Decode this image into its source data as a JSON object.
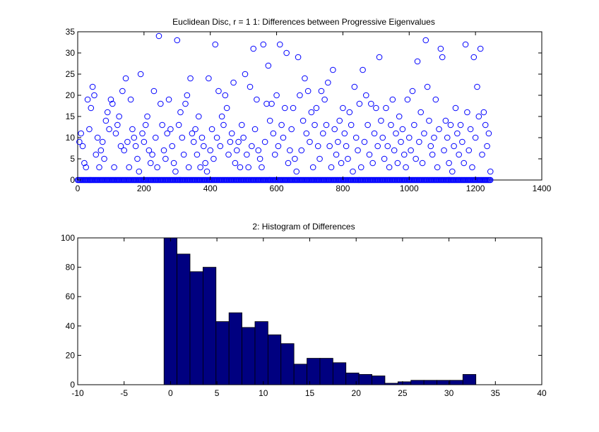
{
  "chart_data": [
    {
      "type": "scatter",
      "title": "Euclidean Disc, r = 1 1: Differences between Progressive Eigenvalues",
      "xlabel": "",
      "ylabel": "",
      "xlim": [
        0,
        1400
      ],
      "ylim": [
        0,
        35
      ],
      "xticks": [
        0,
        200,
        400,
        600,
        800,
        1000,
        1200,
        1400
      ],
      "yticks": [
        0,
        5,
        10,
        15,
        20,
        25,
        30,
        35
      ],
      "grid": false,
      "legend": "none",
      "color": "#0000ff",
      "marker": "circle-open",
      "baseline_range": [
        0,
        1245
      ],
      "points": [
        [
          5,
          9
        ],
        [
          10,
          11
        ],
        [
          15,
          8
        ],
        [
          20,
          4
        ],
        [
          25,
          3
        ],
        [
          30,
          19
        ],
        [
          35,
          12
        ],
        [
          40,
          17
        ],
        [
          45,
          22
        ],
        [
          50,
          20
        ],
        [
          55,
          6
        ],
        [
          60,
          10
        ],
        [
          65,
          3
        ],
        [
          70,
          7
        ],
        [
          75,
          9
        ],
        [
          80,
          5
        ],
        [
          85,
          14
        ],
        [
          90,
          16
        ],
        [
          95,
          12
        ],
        [
          100,
          19
        ],
        [
          105,
          18
        ],
        [
          110,
          3
        ],
        [
          115,
          11
        ],
        [
          120,
          13
        ],
        [
          125,
          15
        ],
        [
          130,
          8
        ],
        [
          135,
          21
        ],
        [
          140,
          7
        ],
        [
          145,
          24
        ],
        [
          150,
          9
        ],
        [
          155,
          3
        ],
        [
          160,
          19
        ],
        [
          165,
          12
        ],
        [
          170,
          10
        ],
        [
          175,
          8
        ],
        [
          180,
          5
        ],
        [
          185,
          2
        ],
        [
          190,
          25
        ],
        [
          195,
          11
        ],
        [
          200,
          9
        ],
        [
          205,
          13
        ],
        [
          210,
          15
        ],
        [
          215,
          7
        ],
        [
          220,
          4
        ],
        [
          225,
          6
        ],
        [
          230,
          21
        ],
        [
          235,
          10
        ],
        [
          240,
          3
        ],
        [
          245,
          34
        ],
        [
          250,
          18
        ],
        [
          255,
          13
        ],
        [
          260,
          7
        ],
        [
          265,
          5
        ],
        [
          270,
          11
        ],
        [
          275,
          19
        ],
        [
          280,
          12
        ],
        [
          285,
          8
        ],
        [
          290,
          4
        ],
        [
          295,
          2
        ],
        [
          300,
          33
        ],
        [
          305,
          13
        ],
        [
          310,
          16
        ],
        [
          315,
          10
        ],
        [
          320,
          6
        ],
        [
          325,
          18
        ],
        [
          330,
          20
        ],
        [
          335,
          3
        ],
        [
          340,
          24
        ],
        [
          345,
          11
        ],
        [
          350,
          9
        ],
        [
          355,
          12
        ],
        [
          360,
          6
        ],
        [
          365,
          15
        ],
        [
          370,
          3
        ],
        [
          375,
          10
        ],
        [
          380,
          8
        ],
        [
          385,
          4
        ],
        [
          390,
          2
        ],
        [
          395,
          24
        ],
        [
          400,
          7
        ],
        [
          405,
          12
        ],
        [
          410,
          5
        ],
        [
          415,
          32
        ],
        [
          420,
          10
        ],
        [
          425,
          21
        ],
        [
          430,
          8
        ],
        [
          435,
          15
        ],
        [
          440,
          13
        ],
        [
          445,
          20
        ],
        [
          450,
          17
        ],
        [
          455,
          6
        ],
        [
          460,
          9
        ],
        [
          465,
          11
        ],
        [
          470,
          23
        ],
        [
          475,
          4
        ],
        [
          480,
          7
        ],
        [
          485,
          9
        ],
        [
          490,
          3
        ],
        [
          495,
          13
        ],
        [
          500,
          10
        ],
        [
          505,
          25
        ],
        [
          510,
          6
        ],
        [
          515,
          3
        ],
        [
          520,
          22
        ],
        [
          525,
          8
        ],
        [
          530,
          31
        ],
        [
          535,
          12
        ],
        [
          540,
          19
        ],
        [
          545,
          7
        ],
        [
          550,
          5
        ],
        [
          555,
          3
        ],
        [
          560,
          32
        ],
        [
          565,
          9
        ],
        [
          570,
          18
        ],
        [
          575,
          27
        ],
        [
          580,
          14
        ],
        [
          585,
          18
        ],
        [
          590,
          11
        ],
        [
          595,
          6
        ],
        [
          600,
          20
        ],
        [
          605,
          8
        ],
        [
          610,
          32
        ],
        [
          615,
          13
        ],
        [
          620,
          10
        ],
        [
          625,
          17
        ],
        [
          630,
          30
        ],
        [
          635,
          4
        ],
        [
          640,
          7
        ],
        [
          645,
          12
        ],
        [
          650,
          17
        ],
        [
          655,
          5
        ],
        [
          660,
          2
        ],
        [
          665,
          29
        ],
        [
          670,
          20
        ],
        [
          675,
          7
        ],
        [
          680,
          14
        ],
        [
          685,
          24
        ],
        [
          690,
          11
        ],
        [
          695,
          21
        ],
        [
          700,
          9
        ],
        [
          705,
          16
        ],
        [
          710,
          3
        ],
        [
          715,
          13
        ],
        [
          720,
          17
        ],
        [
          725,
          8
        ],
        [
          730,
          5
        ],
        [
          735,
          21
        ],
        [
          740,
          11
        ],
        [
          745,
          19
        ],
        [
          750,
          13
        ],
        [
          755,
          23
        ],
        [
          760,
          8
        ],
        [
          765,
          3
        ],
        [
          770,
          26
        ],
        [
          775,
          12
        ],
        [
          780,
          6
        ],
        [
          785,
          9
        ],
        [
          790,
          14
        ],
        [
          795,
          4
        ],
        [
          800,
          17
        ],
        [
          805,
          11
        ],
        [
          810,
          8
        ],
        [
          815,
          5
        ],
        [
          820,
          16
        ],
        [
          825,
          13
        ],
        [
          830,
          2
        ],
        [
          835,
          22
        ],
        [
          840,
          10
        ],
        [
          845,
          7
        ],
        [
          850,
          18
        ],
        [
          855,
          3
        ],
        [
          860,
          26
        ],
        [
          865,
          9
        ],
        [
          870,
          20
        ],
        [
          875,
          13
        ],
        [
          880,
          6
        ],
        [
          885,
          18
        ],
        [
          890,
          4
        ],
        [
          895,
          11
        ],
        [
          900,
          17
        ],
        [
          905,
          8
        ],
        [
          910,
          29
        ],
        [
          915,
          14
        ],
        [
          920,
          10
        ],
        [
          925,
          5
        ],
        [
          930,
          17
        ],
        [
          935,
          8
        ],
        [
          940,
          3
        ],
        [
          945,
          13
        ],
        [
          950,
          19
        ],
        [
          955,
          7
        ],
        [
          960,
          11
        ],
        [
          965,
          4
        ],
        [
          970,
          15
        ],
        [
          975,
          9
        ],
        [
          980,
          12
        ],
        [
          985,
          6
        ],
        [
          990,
          3
        ],
        [
          995,
          19
        ],
        [
          1000,
          10
        ],
        [
          1005,
          7
        ],
        [
          1010,
          21
        ],
        [
          1015,
          13
        ],
        [
          1020,
          5
        ],
        [
          1025,
          28
        ],
        [
          1030,
          9
        ],
        [
          1035,
          16
        ],
        [
          1040,
          4
        ],
        [
          1045,
          11
        ],
        [
          1050,
          33
        ],
        [
          1055,
          22
        ],
        [
          1060,
          14
        ],
        [
          1065,
          8
        ],
        [
          1070,
          6
        ],
        [
          1075,
          10
        ],
        [
          1080,
          19
        ],
        [
          1085,
          3
        ],
        [
          1090,
          12
        ],
        [
          1095,
          31
        ],
        [
          1100,
          29
        ],
        [
          1105,
          7
        ],
        [
          1110,
          14
        ],
        [
          1115,
          10
        ],
        [
          1120,
          4
        ],
        [
          1125,
          13
        ],
        [
          1130,
          2
        ],
        [
          1135,
          8
        ],
        [
          1140,
          17
        ],
        [
          1145,
          11
        ],
        [
          1150,
          6
        ],
        [
          1155,
          13
        ],
        [
          1160,
          9
        ],
        [
          1165,
          4
        ],
        [
          1170,
          32
        ],
        [
          1175,
          16
        ],
        [
          1180,
          7
        ],
        [
          1185,
          12
        ],
        [
          1190,
          3
        ],
        [
          1195,
          29
        ],
        [
          1200,
          10
        ],
        [
          1205,
          22
        ],
        [
          1210,
          15
        ],
        [
          1215,
          31
        ],
        [
          1220,
          6
        ],
        [
          1225,
          16
        ],
        [
          1230,
          13
        ],
        [
          1235,
          8
        ],
        [
          1240,
          11
        ],
        [
          1245,
          2
        ]
      ]
    },
    {
      "type": "bar",
      "title": "2: Histogram of Differences",
      "xlabel": "",
      "ylabel": "",
      "xlim": [
        -10,
        40
      ],
      "ylim": [
        0,
        100
      ],
      "xticks": [
        -10,
        -5,
        0,
        5,
        10,
        15,
        20,
        25,
        30,
        35,
        40
      ],
      "yticks": [
        0,
        20,
        40,
        60,
        80,
        100
      ],
      "grid": false,
      "legend": "none",
      "color": "#000080",
      "bin_width": 1.4,
      "bin_centers": [
        0.0,
        1.4,
        2.8,
        4.2,
        5.6,
        7.0,
        8.4,
        9.8,
        11.2,
        12.6,
        14.0,
        15.4,
        16.8,
        18.2,
        19.6,
        21.0,
        22.4,
        23.8,
        25.2,
        26.6,
        28.0,
        29.4,
        30.8,
        32.2,
        33.6
      ],
      "values": [
        100,
        89,
        77,
        80,
        43,
        49,
        39,
        43,
        34,
        28,
        14,
        18,
        18,
        15,
        8,
        7,
        6,
        1,
        2,
        3,
        3,
        3,
        3,
        7,
        0
      ]
    }
  ]
}
